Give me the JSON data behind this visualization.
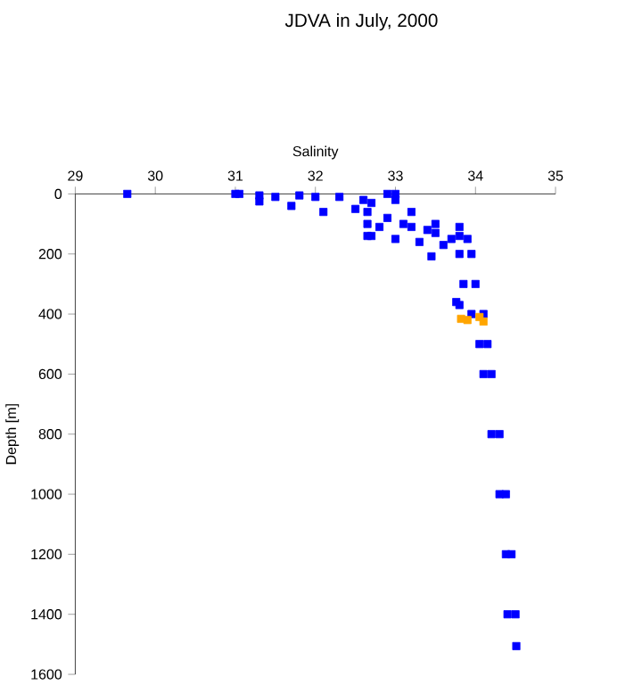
{
  "chart_data": {
    "type": "scatter",
    "title": "JDVA in July, 2000",
    "xlabel": "Salinity",
    "ylabel": "Depth [m]",
    "xlim": [
      29,
      35
    ],
    "xticks": [
      29,
      30,
      31,
      32,
      33,
      34,
      35
    ],
    "ylim": [
      1600,
      0
    ],
    "yticks": [
      0,
      200,
      400,
      600,
      800,
      1000,
      1200,
      1400,
      1600
    ],
    "grid": false,
    "marker": "square",
    "series": [
      {
        "color": "#0000ff",
        "x": [
          29.65,
          31.0,
          31.05,
          31.3,
          31.3,
          31.5,
          31.7,
          31.8,
          32.0,
          32.1,
          32.3,
          32.5,
          32.6,
          32.7,
          32.9,
          33.0,
          32.65,
          32.65,
          32.65,
          32.7,
          33.0,
          33.2,
          33.5,
          33.8,
          33.9,
          33.0,
          33.3,
          33.6,
          33.8,
          33.45,
          33.76,
          33.8,
          33.95,
          33.85,
          34.0,
          33.95,
          34.1,
          34.05,
          34.15,
          34.1,
          34.2,
          34.2,
          34.3,
          34.3,
          34.38,
          34.38,
          34.45,
          34.4,
          34.5,
          34.51,
          33.2,
          33.5,
          33.8,
          32.9,
          32.8,
          33.1,
          33.4,
          33.7
        ],
        "values": [
          0,
          0,
          0,
          5,
          25,
          10,
          40,
          5,
          10,
          60,
          10,
          50,
          20,
          30,
          0,
          0,
          60,
          100,
          140,
          140,
          20,
          60,
          100,
          110,
          150,
          150,
          160,
          170,
          200,
          208,
          360,
          370,
          200,
          300,
          300,
          400,
          400,
          500,
          500,
          600,
          600,
          800,
          800,
          1000,
          1000,
          1200,
          1200,
          1400,
          1400,
          1506,
          110,
          130,
          140,
          80,
          110,
          100,
          120,
          150
        ]
      },
      {
        "color": "#ffa500",
        "x": [
          33.82,
          33.9,
          34.05,
          34.1
        ],
        "values": [
          416,
          420,
          410,
          425
        ]
      }
    ]
  }
}
